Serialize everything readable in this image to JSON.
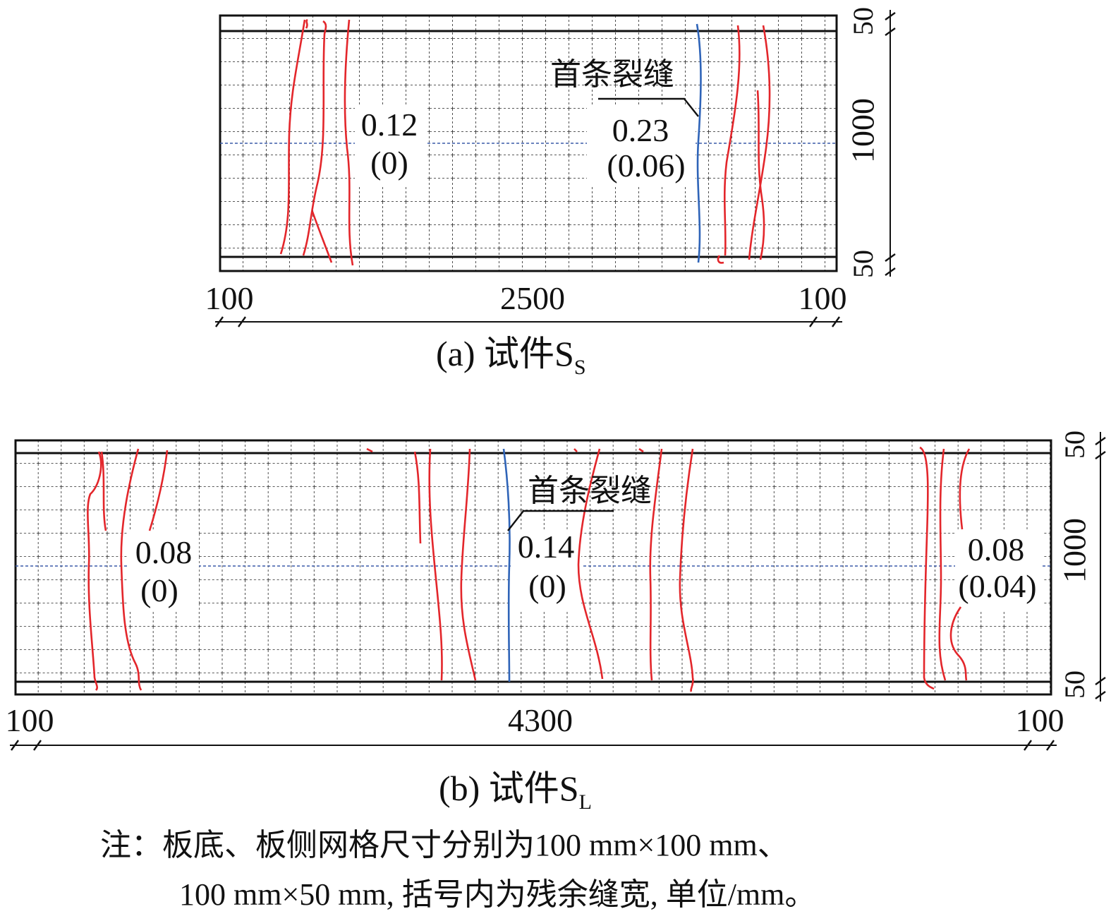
{
  "panel_a": {
    "caption": "(a) 试件S",
    "caption_sub": "S",
    "dim_left": "100",
    "dim_mid": "2500",
    "dim_right": "100",
    "dim_top": "50",
    "dim_height": "1000",
    "dim_bottom": "50",
    "first_crack_label": "首条裂缝",
    "label_left": {
      "width": "0.12",
      "residual": "(0)"
    },
    "label_right": {
      "width": "0.23",
      "residual": "(0.06)"
    }
  },
  "panel_b": {
    "caption": "(b) 试件S",
    "caption_sub": "L",
    "dim_left": "100",
    "dim_mid": "4300",
    "dim_right": "100",
    "dim_top": "50",
    "dim_height": "1000",
    "dim_bottom": "50",
    "first_crack_label": "首条裂缝",
    "label_left": {
      "width": "0.08",
      "residual": "(0)"
    },
    "label_mid": {
      "width": "0.14",
      "residual": "(0)"
    },
    "label_right": {
      "width": "0.08",
      "residual": "(0.04)"
    }
  },
  "note": {
    "line1": "注：板底、板侧网格尺寸分别为100 mm×100 mm、",
    "line2": "100 mm×50 mm, 括号内为残余缝宽, 单位/mm。"
  },
  "colors": {
    "crack": "#e3262b",
    "first_crack": "#2f64b8",
    "centerline": "#3a5aa8",
    "grid": "#222222",
    "frame": "#111111"
  }
}
